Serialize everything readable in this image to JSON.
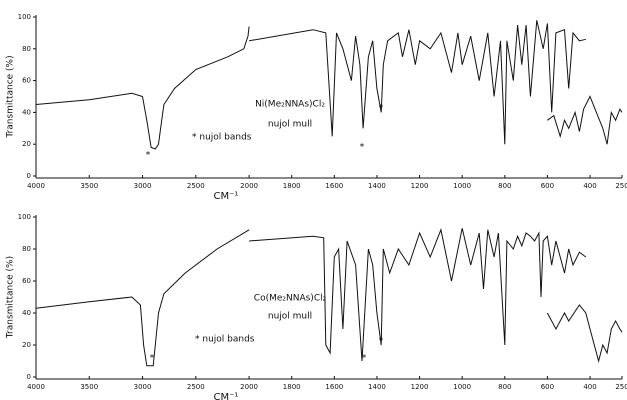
{
  "chart_data": [
    {
      "type": "line",
      "ylabel": "Transmittance (%)",
      "xlabel": "CM⁻¹",
      "xlim": [
        4000,
        250
      ],
      "xbreak": 2000,
      "xbreak_scale": 2,
      "xticks": [
        4000,
        3500,
        3000,
        2500,
        2000,
        1800,
        1600,
        1400,
        1200,
        1000,
        800,
        600,
        400,
        250
      ],
      "ylim": [
        0,
        100
      ],
      "yticks": [
        0,
        20,
        40,
        60,
        80,
        100
      ],
      "annotations": [
        "Ni(Me₂NNAs)Cl₂",
        "nujol mull",
        "* nujol bands",
        "*",
        "*",
        "*"
      ],
      "series": [
        {
          "color": "#111111",
          "x": [
            4000,
            3500,
            3100,
            3000,
            2960,
            2920,
            2880,
            2850,
            2820,
            2800,
            2700,
            2500,
            2200,
            2050,
            2010,
            2000
          ],
          "values": [
            45,
            48,
            52,
            50,
            35,
            18,
            17,
            20,
            35,
            45,
            55,
            67,
            75,
            80,
            88,
            94
          ]
        },
        {
          "color": "#111111",
          "x": [
            2000,
            1700,
            1640,
            1610,
            1590,
            1560,
            1520,
            1500,
            1480,
            1465,
            1440,
            1420,
            1400,
            1380,
            1370,
            1350,
            1300,
            1280,
            1250,
            1220,
            1200,
            1150,
            1100,
            1050,
            1020,
            1000,
            960,
            920,
            880,
            850,
            820,
            800,
            790,
            760,
            740,
            720,
            700,
            680,
            650,
            620,
            600,
            580,
            560,
            520,
            500,
            480,
            450,
            420
          ],
          "values": [
            85,
            92,
            90,
            25,
            90,
            80,
            60,
            88,
            70,
            30,
            75,
            85,
            55,
            40,
            70,
            85,
            90,
            75,
            92,
            70,
            85,
            80,
            90,
            65,
            90,
            70,
            88,
            60,
            90,
            50,
            85,
            20,
            85,
            60,
            95,
            70,
            95,
            50,
            98,
            80,
            96,
            40,
            90,
            92,
            55,
            90,
            85,
            86
          ]
        },
        {
          "color": "#111111",
          "x": [
            600,
            570,
            540,
            520,
            500,
            470,
            450,
            430,
            400,
            370,
            340,
            320,
            300,
            280,
            260,
            250
          ],
          "values": [
            35,
            38,
            25,
            35,
            30,
            40,
            28,
            42,
            50,
            40,
            30,
            20,
            40,
            35,
            42,
            40
          ]
        }
      ]
    },
    {
      "type": "line",
      "ylabel": "Transmittance (%)",
      "xlabel": "CM⁻¹",
      "xlim": [
        4000,
        250
      ],
      "xbreak": 2000,
      "xbreak_scale": 2,
      "xticks": [
        4000,
        3500,
        3000,
        2500,
        2000,
        1800,
        1600,
        1400,
        1200,
        1000,
        800,
        600,
        400,
        250
      ],
      "ylim": [
        0,
        100
      ],
      "yticks": [
        0,
        20,
        40,
        60,
        80,
        100
      ],
      "annotations": [
        "Co(Me₂NNAs)Cl₂",
        "nujol mull",
        "* nujol bands",
        "*",
        "*",
        "*"
      ],
      "series": [
        {
          "color": "#111111",
          "x": [
            4000,
            3500,
            3100,
            3020,
            2990,
            2960,
            2900,
            2880,
            2850,
            2800,
            2600,
            2300,
            2000
          ],
          "values": [
            43,
            47,
            50,
            45,
            20,
            7,
            7,
            20,
            40,
            52,
            65,
            80,
            92
          ]
        },
        {
          "color": "#111111",
          "x": [
            2000,
            1700,
            1650,
            1640,
            1620,
            1600,
            1580,
            1560,
            1540,
            1500,
            1470,
            1440,
            1420,
            1400,
            1380,
            1370,
            1340,
            1300,
            1250,
            1200,
            1150,
            1100,
            1050,
            1000,
            960,
            920,
            900,
            880,
            850,
            830,
            800,
            790,
            760,
            740,
            720,
            700,
            680,
            660,
            640,
            630,
            620,
            600,
            580,
            560,
            520,
            500,
            480,
            450,
            420
          ],
          "values": [
            85,
            88,
            87,
            20,
            15,
            75,
            80,
            30,
            85,
            70,
            10,
            80,
            70,
            40,
            20,
            80,
            65,
            80,
            70,
            90,
            75,
            92,
            60,
            93,
            70,
            90,
            55,
            92,
            75,
            90,
            20,
            85,
            80,
            88,
            82,
            90,
            88,
            85,
            90,
            50,
            85,
            88,
            70,
            85,
            65,
            80,
            70,
            78,
            75
          ]
        },
        {
          "color": "#111111",
          "x": [
            600,
            560,
            520,
            500,
            450,
            420,
            400,
            380,
            360,
            340,
            320,
            300,
            280,
            260,
            250
          ],
          "values": [
            40,
            30,
            40,
            35,
            45,
            40,
            30,
            20,
            10,
            20,
            15,
            30,
            35,
            30,
            28
          ]
        }
      ]
    }
  ]
}
